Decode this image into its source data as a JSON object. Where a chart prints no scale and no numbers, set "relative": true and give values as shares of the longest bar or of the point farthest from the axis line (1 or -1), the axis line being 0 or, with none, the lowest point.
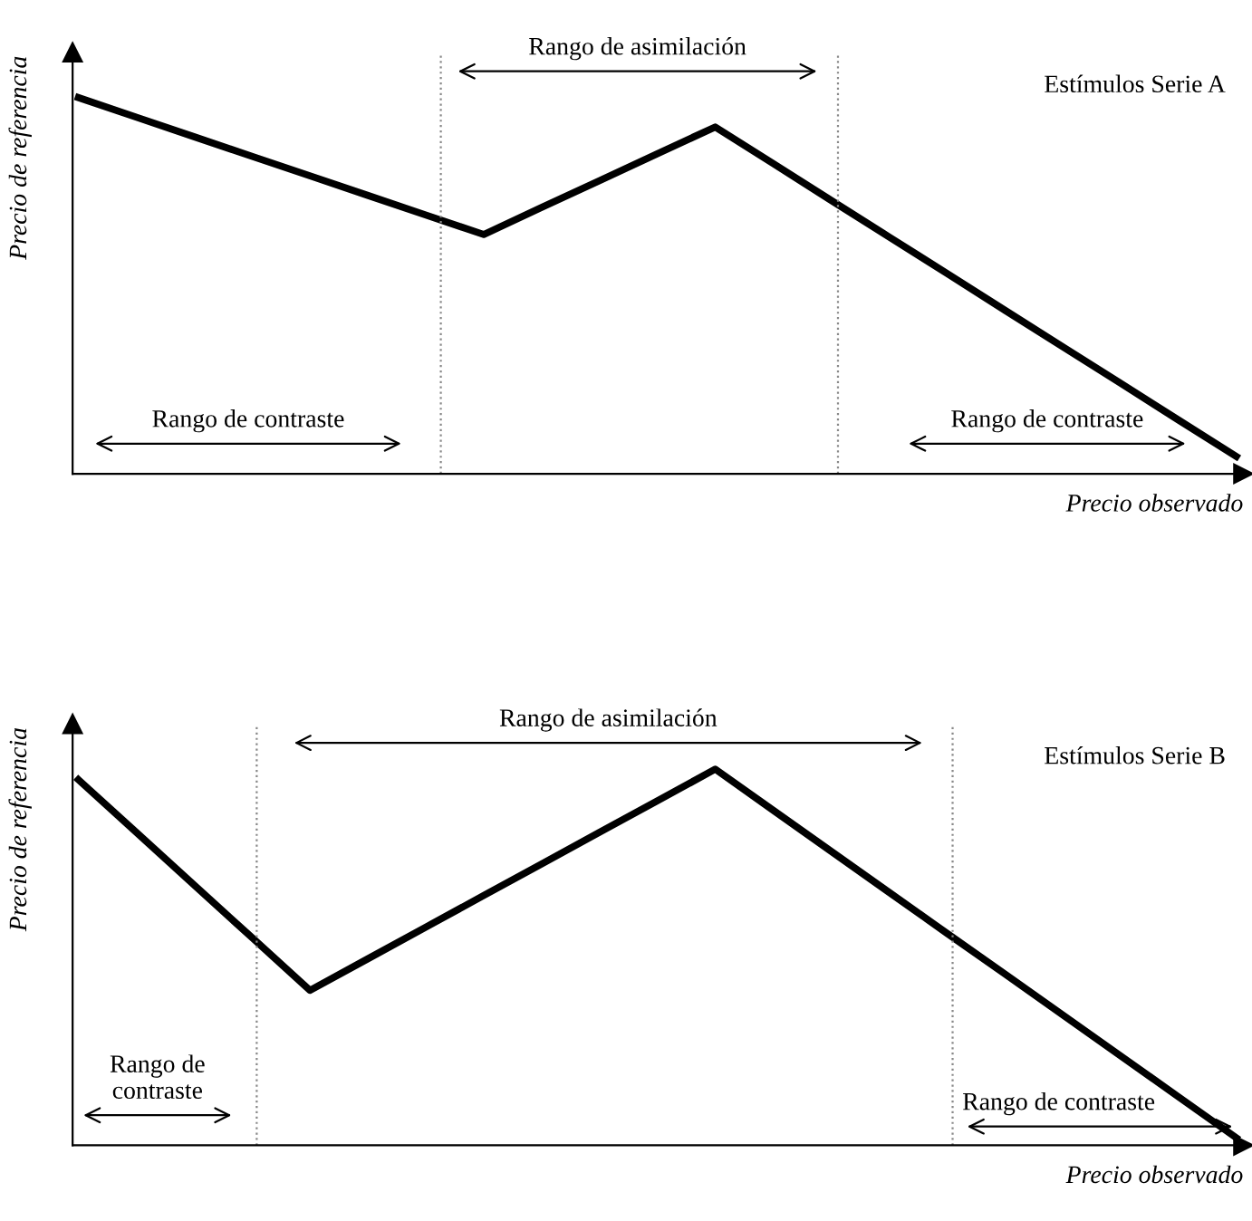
{
  "chart_data": [
    {
      "type": "line",
      "relative": true,
      "grid": false,
      "tick_labels": false,
      "ylabel": "Precio de referencia",
      "xlabel": "Precio observado",
      "categories": [
        null,
        null,
        null,
        null,
        null,
        null,
        null,
        null,
        null,
        null,
        null,
        null,
        null,
        null,
        null,
        null,
        null,
        null,
        null,
        null,
        null
      ],
      "series": [
        {
          "name": "Estímulos Serie A",
          "color": "#000000",
          "values": [
            1,
            0.948,
            0.896,
            0.844,
            0.792,
            0.74,
            0.688,
            0.636,
            0.708,
            0.779,
            0.851,
            0.922,
            0.825,
            0.727,
            0.63,
            0.533,
            0.435,
            0.338,
            0.241,
            0.143,
            0.046
          ]
        }
      ],
      "annotations": [
        "Rango de contraste",
        "Rango de asimilación",
        "Rango de contraste"
      ]
    },
    {
      "type": "line",
      "relative": true,
      "grid": false,
      "tick_labels": false,
      "ylabel": "Precio de referencia",
      "xlabel": "Precio observado",
      "categories": [
        null,
        null,
        null,
        null,
        null,
        null,
        null,
        null,
        null,
        null,
        null,
        null,
        null,
        null,
        null,
        null,
        null,
        null,
        null,
        null,
        null
      ],
      "series": [
        {
          "name": "Estímulos Serie B",
          "color": "#000000",
          "values": [
            0.972,
            0.832,
            0.692,
            0.552,
            0.412,
            0.496,
            0.58,
            0.664,
            0.748,
            0.832,
            0.916,
            1,
            0.891,
            0.782,
            0.673,
            0.564,
            0.456,
            0.347,
            0.238,
            0.129,
            0.02
          ]
        }
      ],
      "annotations": [
        "Rango de\ncontraste",
        "Rango de asimilación",
        "Rango de contraste"
      ]
    }
  ]
}
